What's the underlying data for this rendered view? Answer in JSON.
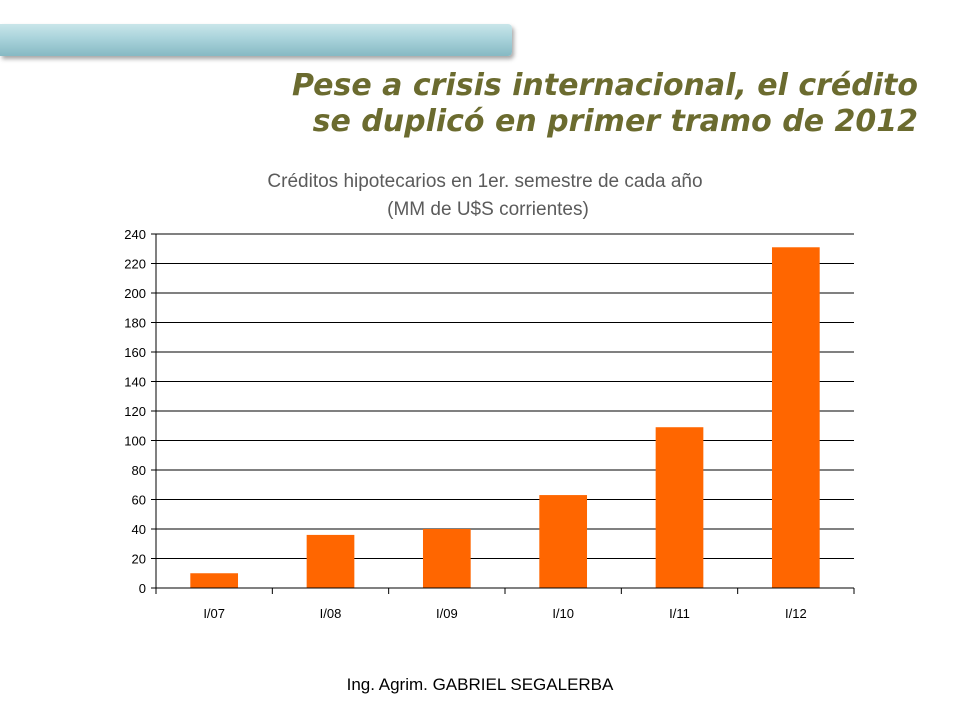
{
  "slide": {
    "title_line1": "Pese a crisis internacional, el crédito",
    "title_line2": "se duplicó en primer tramo de 2012",
    "footer": "Ing. Agrim. GABRIEL SEGALERBA"
  },
  "colors": {
    "bar": "#ff6600",
    "title": "#6b6b2f",
    "accent_bar": "#a9d3db"
  },
  "chart_data": {
    "type": "bar",
    "title": "Créditos hipotecarios en 1er. semestre de cada año",
    "subtitle": "(MM de U$S corrientes)",
    "categories": [
      "I/07",
      "I/08",
      "I/09",
      "I/10",
      "I/11",
      "I/12"
    ],
    "values": [
      10,
      36,
      40,
      63,
      109,
      231
    ],
    "ylim": [
      0,
      240
    ],
    "yticks": [
      0,
      20,
      40,
      60,
      80,
      100,
      120,
      140,
      160,
      180,
      200,
      220,
      240
    ],
    "grid": true,
    "legend": "none",
    "xlabel": "",
    "ylabel": ""
  }
}
